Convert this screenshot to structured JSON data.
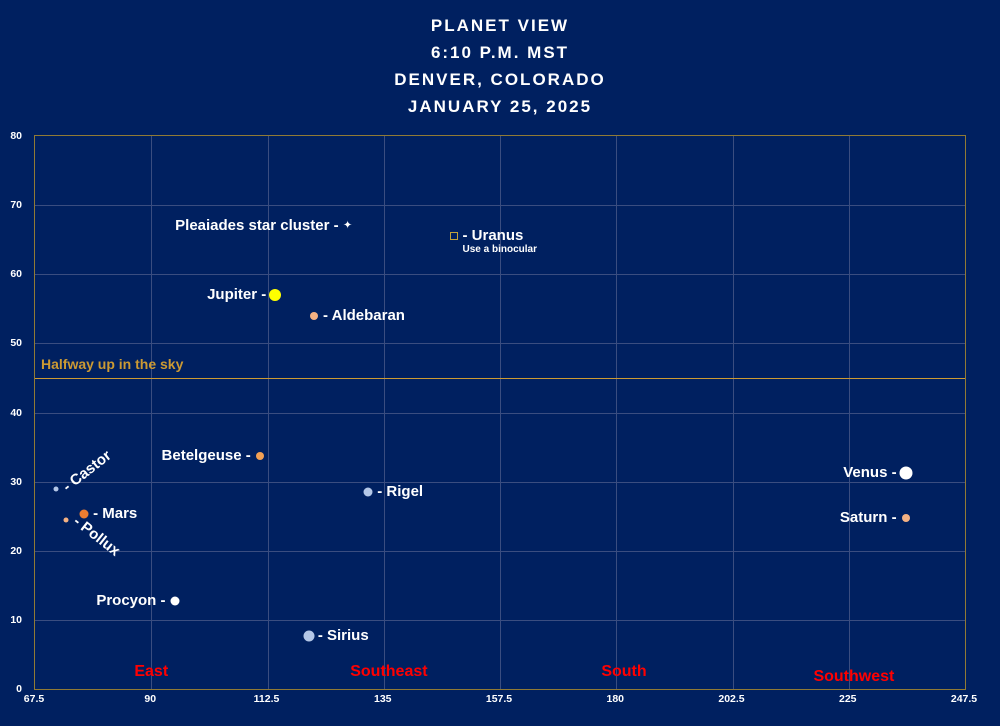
{
  "title": {
    "line1": "PLANET VIEW",
    "line2": "6:10 P.M. MST",
    "line3": "DENVER, COLORADO",
    "line4": "JANUARY 25, 2025"
  },
  "colors": {
    "background": "#002060",
    "gridline": "#3A4D80",
    "plot_border": "#907A35",
    "reference_gold": "#CC9A33",
    "direction_red": "#FF0000",
    "text_white": "#FFFFFF"
  },
  "chart_data": {
    "type": "scatter",
    "title": "PLANET VIEW 6:10 P.M. MST DENVER, COLORADO JANUARY 25, 2025",
    "xlabel": "",
    "ylabel": "",
    "grid": true,
    "xlim": [
      67.5,
      247.5
    ],
    "ylim": [
      0,
      80
    ],
    "x_ticks": [
      "67.5",
      "90",
      "112.5",
      "135",
      "157.5",
      "180",
      "202.5",
      "225",
      "247.5"
    ],
    "y_ticks": [
      "0",
      "10",
      "20",
      "30",
      "40",
      "50",
      "60",
      "70",
      "80"
    ],
    "reference_line": {
      "y": 45,
      "label": "Halfway up in the sky",
      "color": "#CC9A33"
    },
    "direction_labels": [
      {
        "label": "East",
        "az": 90,
        "alt": 2.4
      },
      {
        "label": "Southeast",
        "az": 136,
        "alt": 2.4
      },
      {
        "label": "South",
        "az": 181.5,
        "alt": 2.4
      },
      {
        "label": "Southwest",
        "az": 226,
        "alt": 1.8
      }
    ],
    "points": [
      {
        "name": "pleiades",
        "label": "Pleaiades star cluster -",
        "side": "left",
        "az": 128,
        "alt": 67,
        "marker": "star",
        "color": "#FFFFFF",
        "size": 9
      },
      {
        "name": "uranus",
        "label": "- Uranus",
        "note": "Use a binocular",
        "side": "right",
        "az": 148.5,
        "alt": 65.5,
        "marker": "square",
        "color": "#BFA13C",
        "size": 6
      },
      {
        "name": "jupiter",
        "label": "Jupiter -",
        "side": "left",
        "az": 114,
        "alt": 57,
        "marker": "circle",
        "color": "#FFFF00",
        "size": 12
      },
      {
        "name": "aldebaran",
        "label": "- Aldebaran",
        "side": "right",
        "az": 121.5,
        "alt": 54,
        "marker": "circle",
        "color": "#F4B183",
        "size": 8
      },
      {
        "name": "betelgeuse",
        "label": "Betelgeuse -",
        "side": "left",
        "az": 111,
        "alt": 33.7,
        "marker": "circle",
        "color": "#F2A054",
        "size": 8
      },
      {
        "name": "rigel",
        "label": "- Rigel",
        "side": "right",
        "az": 132,
        "alt": 28.5,
        "marker": "circle",
        "color": "#B4C7E7",
        "size": 9
      },
      {
        "name": "castor",
        "label": "- Castor",
        "side": "right",
        "az": 71.5,
        "alt": 29,
        "marker": "circle",
        "color": "#B4C7E7",
        "size": 5,
        "label_rotation": -38
      },
      {
        "name": "pollux",
        "label": "- Pollux",
        "side": "right",
        "az": 73.5,
        "alt": 24.5,
        "marker": "circle",
        "color": "#F4B183",
        "size": 5,
        "label_rotation": 38
      },
      {
        "name": "mars",
        "label": "- Mars",
        "side": "right",
        "az": 77,
        "alt": 25.3,
        "marker": "circle",
        "color": "#ED7D31",
        "size": 9
      },
      {
        "name": "procyon",
        "label": "Procyon -",
        "side": "left",
        "az": 94.5,
        "alt": 12.7,
        "marker": "circle",
        "color": "#FFFFFF",
        "size": 9
      },
      {
        "name": "sirius",
        "label": "- Sirius",
        "side": "right",
        "az": 120.5,
        "alt": 7.7,
        "marker": "circle",
        "color": "#B4C7E7",
        "size": 11
      },
      {
        "name": "venus",
        "label": "Venus -",
        "side": "left",
        "az": 236,
        "alt": 31.2,
        "marker": "circle",
        "color": "#FFFFFF",
        "size": 13
      },
      {
        "name": "saturn",
        "label": "Saturn -",
        "side": "left",
        "az": 236,
        "alt": 24.7,
        "marker": "circle",
        "color": "#F4B183",
        "size": 8
      }
    ]
  }
}
